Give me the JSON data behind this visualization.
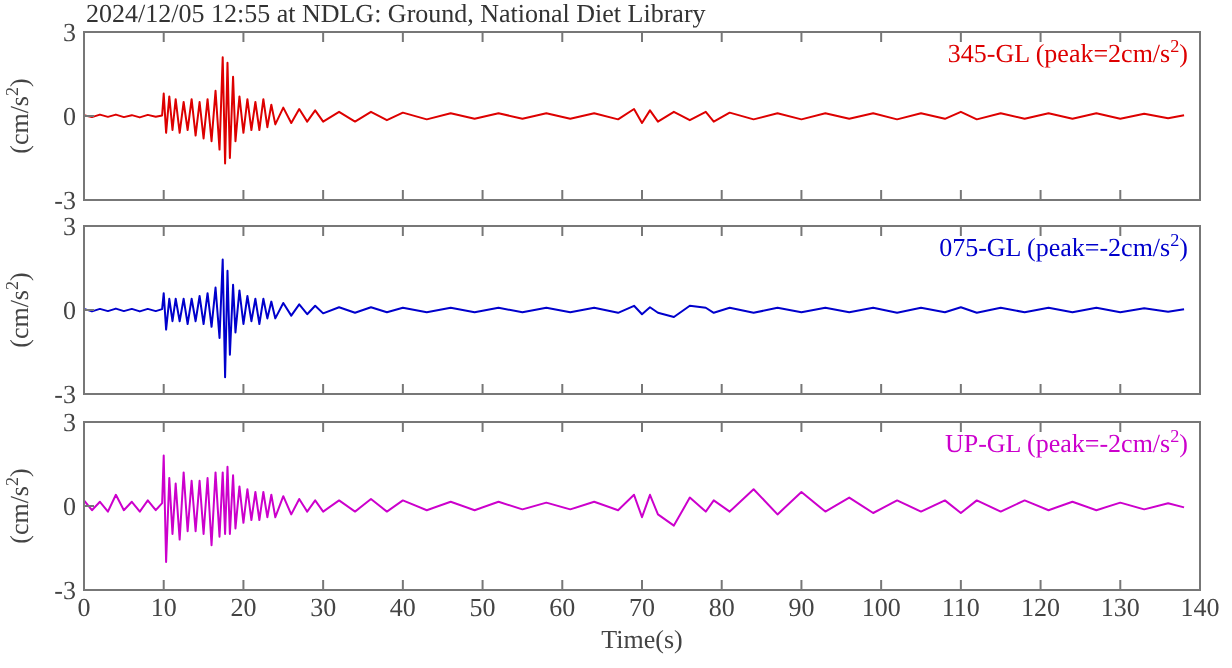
{
  "chart_data": [
    {
      "type": "line",
      "title": "2024/12/05 12:55 at NDLG: Ground, National Diet Library",
      "ylabel": "(cm/s$^{2}$)",
      "tick_labels": "y",
      "xlim": [
        0,
        140
      ],
      "xticks": [
        0,
        10,
        20,
        30,
        40,
        50,
        60,
        70,
        80,
        90,
        100,
        110,
        120,
        130,
        140
      ],
      "ylim": [
        -3,
        3
      ],
      "yticks": [
        -3,
        0,
        3
      ],
      "x": [
        0,
        1,
        2,
        3,
        4,
        5,
        6,
        7,
        8,
        9,
        9.8,
        10,
        10.3,
        10.7,
        11.1,
        11.5,
        12,
        12.5,
        13,
        13.5,
        14,
        14.5,
        15,
        15.5,
        16,
        16.5,
        17,
        17.4,
        17.7,
        18,
        18.3,
        18.7,
        19,
        19.5,
        20,
        20.5,
        21,
        21.5,
        22,
        22.5,
        23,
        23.5,
        24,
        25,
        26,
        27,
        28,
        29,
        30,
        32,
        34,
        36,
        38,
        40,
        43,
        46,
        49,
        52,
        55,
        58,
        61,
        64,
        67,
        69,
        70,
        71,
        72,
        74,
        76,
        78,
        79,
        81,
        84,
        87,
        90,
        93,
        96,
        99,
        102,
        105,
        108,
        110,
        112,
        115,
        118,
        121,
        124,
        127,
        130,
        133,
        136,
        138
      ],
      "series": [
        {
          "name": "345-GL (peak=2cm/s$^{2}$)",
          "color": "#dd0000",
          "values": [
            0.03,
            -0.04,
            0.05,
            -0.03,
            0.05,
            -0.04,
            0.03,
            -0.05,
            0.04,
            -0.03,
            0.02,
            0.8,
            -0.6,
            0.7,
            -0.5,
            0.6,
            -0.6,
            0.5,
            -0.5,
            0.6,
            -0.7,
            0.5,
            -0.8,
            0.6,
            -0.9,
            0.9,
            -1.2,
            2.1,
            -1.7,
            1.9,
            -1.5,
            1.4,
            -0.9,
            0.7,
            -0.6,
            0.6,
            -0.5,
            0.5,
            -0.5,
            0.6,
            -0.4,
            0.4,
            -0.3,
            0.3,
            -0.25,
            0.25,
            -0.2,
            0.2,
            -0.2,
            0.15,
            -0.2,
            0.15,
            -0.15,
            0.12,
            -0.12,
            0.1,
            -0.1,
            0.1,
            -0.1,
            0.1,
            -0.1,
            0.1,
            -0.12,
            0.25,
            -0.25,
            0.2,
            -0.2,
            0.15,
            -0.15,
            0.15,
            -0.2,
            0.12,
            -0.12,
            0.1,
            -0.12,
            0.1,
            -0.1,
            0.1,
            -0.12,
            0.1,
            -0.1,
            0.15,
            -0.12,
            0.1,
            -0.1,
            0.1,
            -0.1,
            0.1,
            -0.1,
            0.08,
            -0.08,
            0.03
          ]
        }
      ]
    },
    {
      "type": "line",
      "ylabel": "(cm/s$^{2}$)",
      "tick_labels": "y",
      "xlim": [
        0,
        140
      ],
      "xticks": [
        0,
        10,
        20,
        30,
        40,
        50,
        60,
        70,
        80,
        90,
        100,
        110,
        120,
        130,
        140
      ],
      "ylim": [
        -3,
        3
      ],
      "yticks": [
        -3,
        0,
        3
      ],
      "x": [
        0,
        1,
        2,
        3,
        4,
        5,
        6,
        7,
        8,
        9,
        9.8,
        10,
        10.3,
        10.7,
        11.1,
        11.5,
        12,
        12.5,
        13,
        13.5,
        14,
        14.5,
        15,
        15.5,
        16,
        16.5,
        17,
        17.4,
        17.7,
        18,
        18.3,
        18.7,
        19,
        19.5,
        20,
        20.5,
        21,
        21.5,
        22,
        22.5,
        23,
        23.5,
        24,
        25,
        26,
        27,
        28,
        29,
        30,
        32,
        34,
        36,
        38,
        40,
        43,
        46,
        49,
        52,
        55,
        58,
        61,
        64,
        67,
        69,
        70,
        71,
        72,
        74,
        76,
        78,
        79,
        81,
        84,
        87,
        90,
        93,
        96,
        99,
        102,
        105,
        108,
        110,
        112,
        115,
        118,
        121,
        124,
        127,
        130,
        133,
        136,
        138
      ],
      "series": [
        {
          "name": "075-GL (peak=-2cm/s$^{2}$)",
          "color": "#0000cc",
          "values": [
            0.04,
            -0.05,
            0.04,
            -0.04,
            0.05,
            -0.04,
            0.04,
            -0.05,
            0.04,
            -0.04,
            0.03,
            0.6,
            -0.7,
            0.4,
            -0.4,
            0.4,
            -0.4,
            0.4,
            -0.5,
            0.4,
            -0.4,
            0.5,
            -0.5,
            0.6,
            -0.6,
            0.8,
            -1.0,
            1.8,
            -2.4,
            1.4,
            -1.6,
            0.9,
            -0.8,
            0.7,
            -0.5,
            0.5,
            -0.4,
            0.4,
            -0.5,
            0.4,
            -0.3,
            0.3,
            -0.3,
            0.25,
            -0.2,
            0.2,
            -0.15,
            0.15,
            -0.12,
            0.1,
            -0.1,
            0.1,
            -0.08,
            0.08,
            -0.08,
            0.08,
            -0.08,
            0.08,
            -0.08,
            0.08,
            -0.08,
            0.08,
            -0.1,
            0.15,
            -0.15,
            0.1,
            -0.1,
            -0.25,
            0.15,
            0.08,
            -0.1,
            0.08,
            -0.1,
            0.08,
            -0.08,
            0.08,
            -0.08,
            0.08,
            -0.1,
            0.08,
            -0.08,
            0.1,
            -0.1,
            0.08,
            -0.08,
            0.08,
            -0.08,
            0.08,
            -0.08,
            0.06,
            -0.06,
            0.03
          ]
        }
      ]
    },
    {
      "type": "line",
      "ylabel": "(cm/s$^{2}$)",
      "xlabel": "Time(s)",
      "xlim": [
        0,
        140
      ],
      "xticks": [
        0,
        10,
        20,
        30,
        40,
        50,
        60,
        70,
        80,
        90,
        100,
        110,
        120,
        130,
        140
      ],
      "ylim": [
        -3,
        3
      ],
      "yticks": [
        -3,
        0,
        3
      ],
      "x": [
        0,
        1,
        2,
        3,
        4,
        5,
        6,
        7,
        8,
        9,
        9.8,
        10,
        10.3,
        10.7,
        11.1,
        11.5,
        12,
        12.5,
        13,
        13.5,
        14,
        14.5,
        15,
        15.5,
        16,
        16.5,
        17,
        17.4,
        17.7,
        18,
        18.3,
        18.7,
        19,
        19.5,
        20,
        20.5,
        21,
        21.5,
        22,
        22.5,
        23,
        23.5,
        24,
        25,
        26,
        27,
        28,
        29,
        30,
        32,
        34,
        36,
        38,
        40,
        43,
        46,
        49,
        52,
        55,
        58,
        61,
        64,
        67,
        69,
        70,
        71,
        72,
        74,
        76,
        78,
        79,
        81,
        84,
        87,
        90,
        93,
        96,
        99,
        102,
        105,
        108,
        110,
        112,
        115,
        118,
        121,
        124,
        127,
        130,
        133,
        136,
        138
      ],
      "series": [
        {
          "name": "UP-GL (peak=-2cm/s$^{2}$)",
          "color": "#cc00cc",
          "values": [
            0.2,
            -0.15,
            0.15,
            -0.2,
            0.4,
            -0.15,
            0.15,
            -0.2,
            0.2,
            -0.15,
            0.1,
            1.8,
            -2.0,
            1.0,
            -1.0,
            0.8,
            -1.2,
            1.2,
            -0.9,
            0.9,
            -0.9,
            0.9,
            -1.0,
            1.0,
            -1.4,
            1.2,
            -1.1,
            1.2,
            -1.0,
            1.4,
            -1.0,
            1.1,
            -0.8,
            0.7,
            -0.6,
            0.6,
            -0.5,
            0.5,
            -0.5,
            0.5,
            -0.4,
            0.4,
            -0.4,
            0.35,
            -0.3,
            0.25,
            -0.2,
            0.2,
            -0.2,
            0.2,
            -0.2,
            0.25,
            -0.2,
            0.2,
            -0.15,
            0.15,
            -0.15,
            0.15,
            -0.12,
            0.12,
            -0.12,
            0.15,
            -0.15,
            0.4,
            -0.4,
            0.4,
            -0.3,
            -0.7,
            0.3,
            -0.2,
            0.2,
            -0.2,
            0.6,
            -0.3,
            0.5,
            -0.2,
            0.3,
            -0.25,
            0.2,
            -0.2,
            0.2,
            -0.25,
            0.2,
            -0.2,
            0.2,
            -0.15,
            0.15,
            -0.15,
            0.12,
            -0.12,
            0.1,
            -0.05
          ]
        }
      ]
    }
  ]
}
